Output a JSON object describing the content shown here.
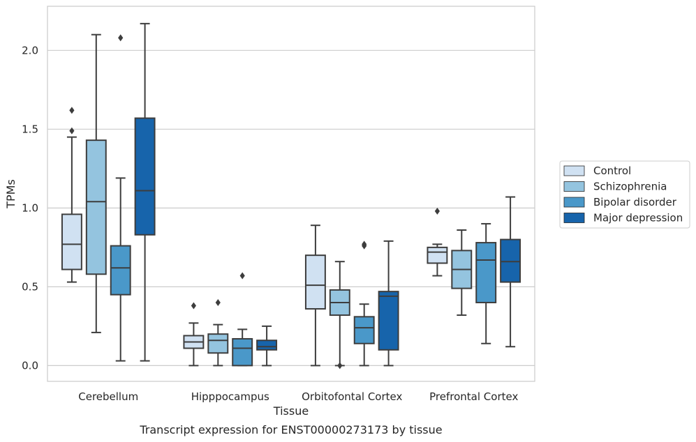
{
  "chart_data": {
    "type": "box",
    "title": "",
    "caption": "Transcript expression for ENST00000273173 by tissue",
    "xlabel": "Tissue",
    "ylabel": "TPMs",
    "ylim": [
      -0.1,
      2.28
    ],
    "yticks": [
      "0.0",
      "0.5",
      "1.0",
      "1.5",
      "2.0"
    ],
    "grid": "horizontal",
    "legend_position": "right",
    "categories": [
      "Cerebellum",
      "Hipppocampus",
      "Orbitofontal Cortex",
      "Prefrontal Cortex"
    ],
    "series": [
      {
        "name": "Control",
        "color": "#d0e1f2",
        "boxes": [
          {
            "whislo": 0.53,
            "q1": 0.61,
            "med": 0.77,
            "q3": 0.96,
            "whishi": 1.45,
            "fliers": [
              1.49,
              1.62
            ]
          },
          {
            "whislo": 0.0,
            "q1": 0.11,
            "med": 0.15,
            "q3": 0.19,
            "whishi": 0.27,
            "fliers": [
              0.38
            ]
          },
          {
            "whislo": 0.0,
            "q1": 0.36,
            "med": 0.51,
            "q3": 0.7,
            "whishi": 0.89,
            "fliers": []
          },
          {
            "whislo": 0.57,
            "q1": 0.65,
            "med": 0.72,
            "q3": 0.75,
            "whishi": 0.77,
            "fliers": [
              0.98
            ]
          }
        ]
      },
      {
        "name": "Schizophrenia",
        "color": "#94c4df",
        "boxes": [
          {
            "whislo": 0.21,
            "q1": 0.58,
            "med": 1.04,
            "q3": 1.43,
            "whishi": 2.1,
            "fliers": []
          },
          {
            "whislo": 0.0,
            "q1": 0.08,
            "med": 0.16,
            "q3": 0.2,
            "whishi": 0.26,
            "fliers": [
              0.4
            ]
          },
          {
            "whislo": 0.0,
            "q1": 0.32,
            "med": 0.4,
            "q3": 0.48,
            "whishi": 0.66,
            "fliers": [
              0.0
            ]
          },
          {
            "whislo": 0.32,
            "q1": 0.49,
            "med": 0.61,
            "q3": 0.73,
            "whishi": 0.86,
            "fliers": []
          }
        ]
      },
      {
        "name": "Bipolar disorder",
        "color": "#4a98c9",
        "boxes": [
          {
            "whislo": 0.03,
            "q1": 0.45,
            "med": 0.62,
            "q3": 0.76,
            "whishi": 1.19,
            "fliers": [
              2.08
            ]
          },
          {
            "whislo": 0.0,
            "q1": 0.0,
            "med": 0.11,
            "q3": 0.17,
            "whishi": 0.23,
            "fliers": [
              0.57
            ]
          },
          {
            "whislo": 0.0,
            "q1": 0.14,
            "med": 0.24,
            "q3": 0.31,
            "whishi": 0.39,
            "fliers": [
              0.76,
              0.77
            ]
          },
          {
            "whislo": 0.14,
            "q1": 0.4,
            "med": 0.67,
            "q3": 0.78,
            "whishi": 0.9,
            "fliers": []
          }
        ]
      },
      {
        "name": "Major depression",
        "color": "#1764ab",
        "boxes": [
          {
            "whislo": 0.03,
            "q1": 0.83,
            "med": 1.11,
            "q3": 1.57,
            "whishi": 2.17,
            "fliers": []
          },
          {
            "whislo": 0.0,
            "q1": 0.1,
            "med": 0.12,
            "q3": 0.16,
            "whishi": 0.25,
            "fliers": []
          },
          {
            "whislo": 0.0,
            "q1": 0.1,
            "med": 0.44,
            "q3": 0.47,
            "whishi": 0.79,
            "fliers": []
          },
          {
            "whislo": 0.12,
            "q1": 0.53,
            "med": 0.66,
            "q3": 0.8,
            "whishi": 1.07,
            "fliers": []
          }
        ]
      }
    ]
  }
}
